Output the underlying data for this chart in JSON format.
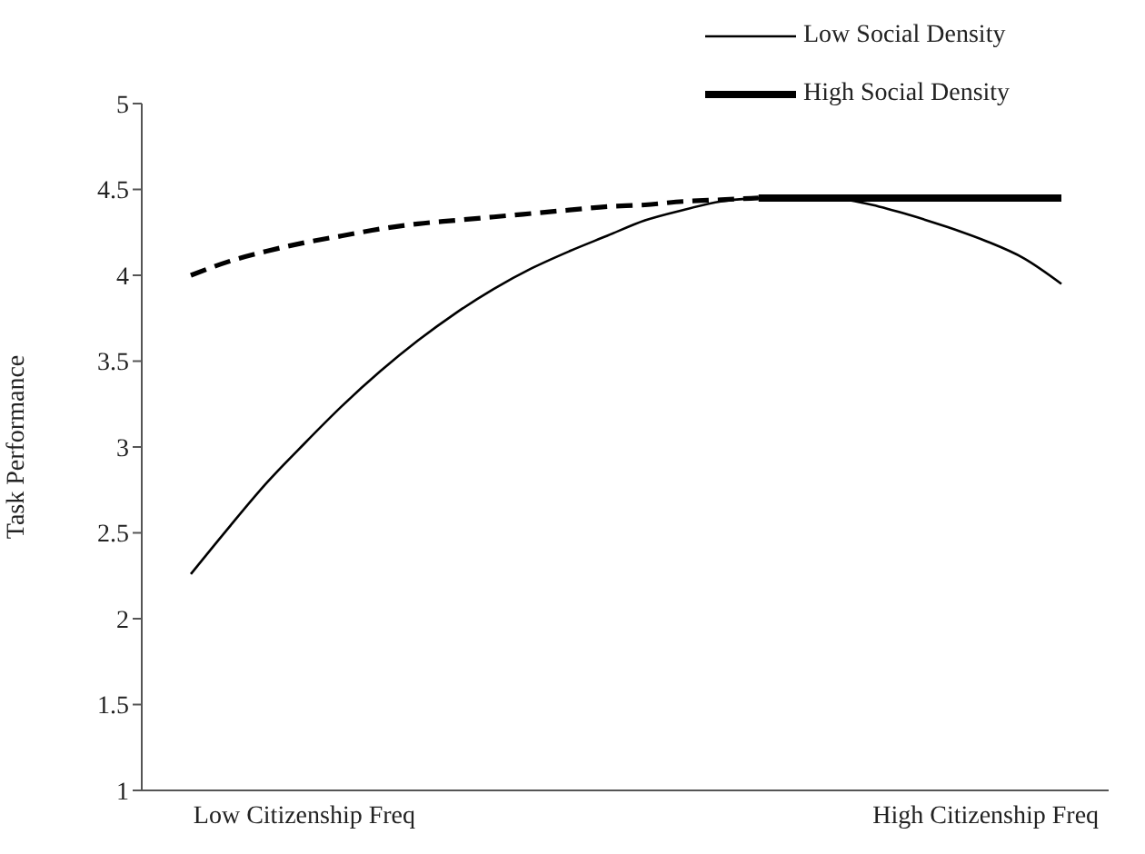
{
  "chart_data": {
    "type": "line",
    "ylabel": "Task Performance",
    "categories": [
      null,
      null,
      null,
      "Low Citizenship Freq",
      null,
      null,
      null,
      null,
      null,
      null,
      null,
      null,
      null,
      null,
      null,
      null,
      null,
      null,
      null,
      null,
      null,
      "High Citizenship Freq",
      null,
      null
    ],
    "ylim": [
      1,
      5
    ],
    "yticks": [
      1,
      1.5,
      2,
      2.5,
      3,
      3.5,
      4,
      4.5,
      5
    ],
    "grid": false,
    "legend": "top right",
    "marker": "none",
    "series": [
      {
        "name": "Low Social Density",
        "color": "#000000",
        "line_style": "solid",
        "values": [
          2.26,
          2.53,
          2.79,
          3.02,
          3.24,
          3.44,
          3.62,
          3.78,
          3.92,
          4.04,
          4.14,
          4.23,
          4.32,
          4.38,
          4.43,
          4.45,
          4.46,
          4.45,
          4.41,
          4.35,
          4.28,
          4.2,
          4.1,
          3.95
        ]
      },
      {
        "name": "High Social Density",
        "color": "#000000",
        "line_style": "solid",
        "values": [
          null,
          null,
          null,
          null,
          null,
          null,
          null,
          null,
          null,
          null,
          null,
          null,
          null,
          null,
          null,
          4.45,
          4.45,
          4.45,
          4.45,
          4.45,
          4.45,
          4.45,
          4.45,
          4.45
        ]
      },
      {
        "color": "#000000",
        "line_style": "dashed",
        "values": [
          4.0,
          4.08,
          4.14,
          4.19,
          4.23,
          4.27,
          4.3,
          4.32,
          4.34,
          4.36,
          4.38,
          4.4,
          4.41,
          4.43,
          4.44,
          4.45,
          null,
          null,
          null,
          null,
          null,
          null,
          null,
          null
        ]
      }
    ]
  }
}
